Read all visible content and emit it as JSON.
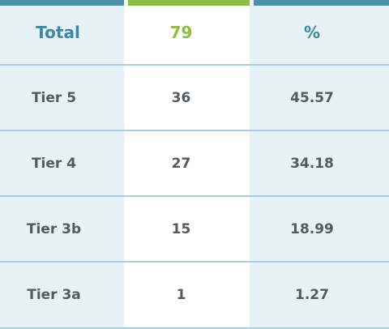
{
  "header": {
    "label": "Total",
    "count": "79",
    "percent_symbol": "%"
  },
  "rows": [
    {
      "label": "Tier 5",
      "count": "36",
      "percent": "45.57"
    },
    {
      "label": "Tier 4",
      "count": "27",
      "percent": "34.18"
    },
    {
      "label": "Tier 3b",
      "count": "15",
      "percent": "18.99"
    },
    {
      "label": "Tier 3a",
      "count": "1",
      "percent": "1.27"
    }
  ],
  "colors": {
    "accent_blue": "#4e8fac",
    "accent_green": "#8cbf3f",
    "cell_tint": "#e6f2f6",
    "divider": "#a6cfe1",
    "text": "#555a5e"
  }
}
